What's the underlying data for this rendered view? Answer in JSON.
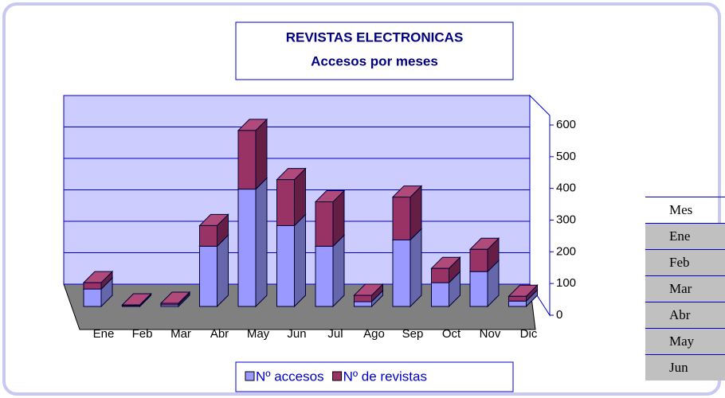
{
  "chart_data": {
    "type": "bar",
    "stacked": true,
    "title": "REVISTAS ELECTRONICAS",
    "subtitle": "Accesos por meses",
    "categories": [
      "Ene",
      "Feb",
      "Mar",
      "Abr",
      "May",
      "Jun",
      "Jul",
      "Ago",
      "Sep",
      "Oct",
      "Nov",
      "Dic"
    ],
    "series": [
      {
        "name": "Nº accesos",
        "color": "#9999ff",
        "values": [
          55,
          3,
          5,
          190,
          370,
          255,
          190,
          15,
          210,
          75,
          110,
          17
        ]
      },
      {
        "name": "Nº de revistas",
        "color": "#993366",
        "values": [
          20,
          2,
          5,
          65,
          185,
          145,
          140,
          20,
          135,
          45,
          70,
          15
        ]
      }
    ],
    "ylim": [
      0,
      600
    ],
    "yticks": [
      0,
      100,
      200,
      300,
      400,
      500,
      600
    ],
    "grid": true,
    "legend": "bottom"
  },
  "table": {
    "header": "Mes",
    "rows": [
      "Ene",
      "Feb",
      "Mar",
      "Abr",
      "May",
      "Jun"
    ]
  }
}
